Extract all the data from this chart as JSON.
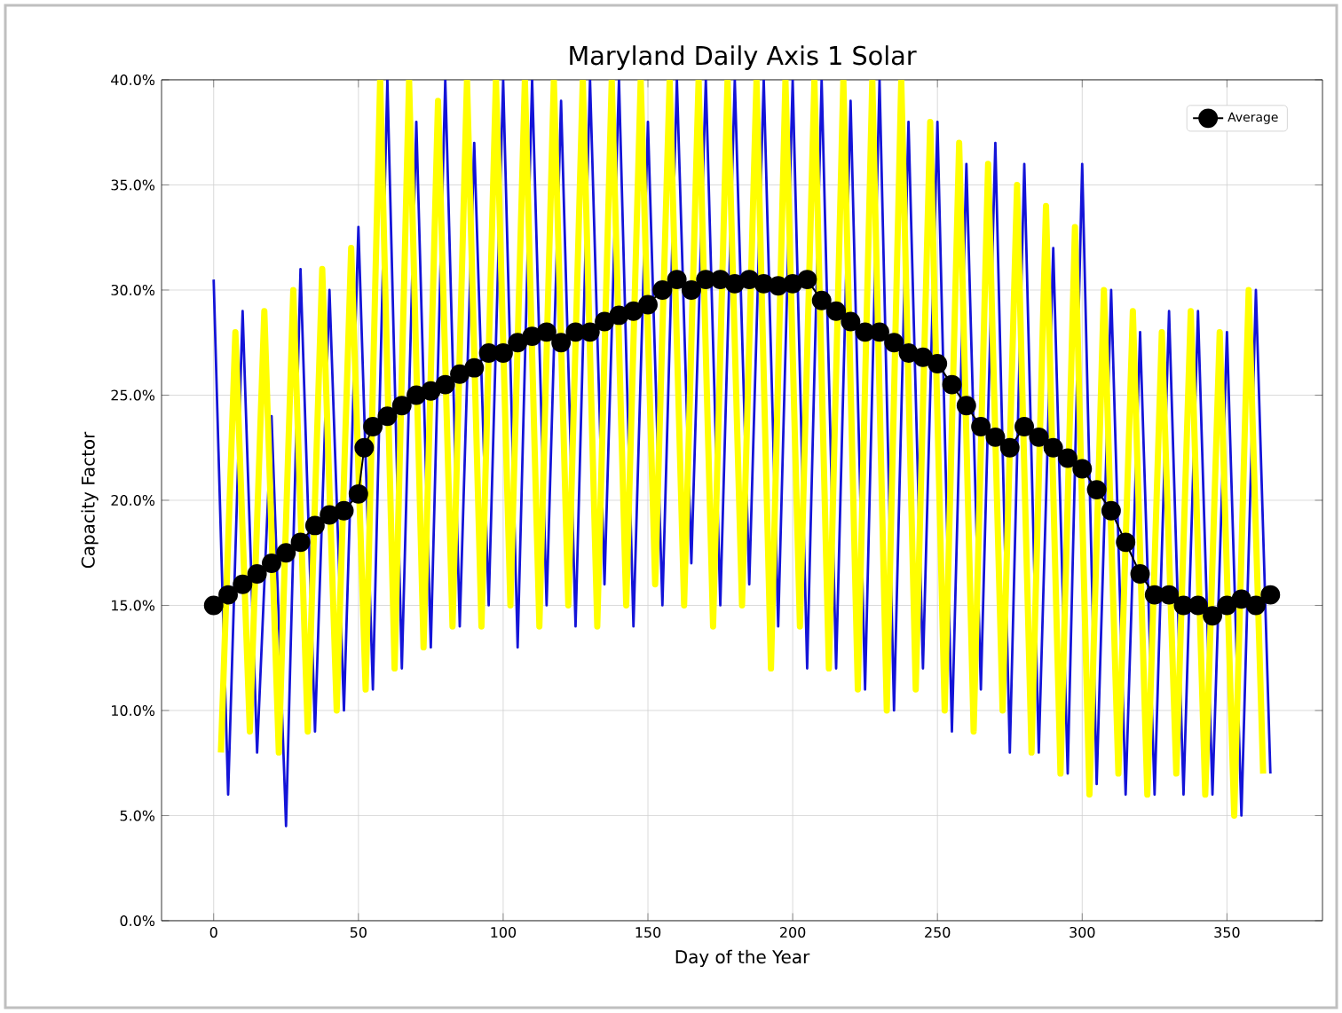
{
  "chart_data": {
    "type": "line",
    "title": "Maryland Daily Axis 1 Solar",
    "xlabel": "Day of the Year",
    "ylabel": "Capacity Factor",
    "xlim": [
      -18,
      383
    ],
    "ylim": [
      0,
      40
    ],
    "xticks": [
      0,
      50,
      100,
      150,
      200,
      250,
      300,
      350
    ],
    "yticks": [
      {
        "value": 0,
        "label": "0.0%"
      },
      {
        "value": 5,
        "label": "5.0%"
      },
      {
        "value": 10,
        "label": "10.0%"
      },
      {
        "value": 15,
        "label": "15.0%"
      },
      {
        "value": 20,
        "label": "20.0%"
      },
      {
        "value": 25,
        "label": "25.0%"
      },
      {
        "value": 30,
        "label": "30.0%"
      },
      {
        "value": 35,
        "label": "35.0%"
      },
      {
        "value": 40,
        "label": "40.0%"
      }
    ],
    "grid": true,
    "legend": "top right",
    "series": [
      {
        "color": "#1414d8",
        "x": [
          0,
          5,
          10,
          15,
          20,
          25,
          30,
          35,
          40,
          45,
          50,
          55,
          60,
          65,
          70,
          75,
          80,
          85,
          90,
          95,
          100,
          105,
          110,
          115,
          120,
          125,
          130,
          135,
          140,
          145,
          150,
          155,
          160,
          165,
          170,
          175,
          180,
          185,
          190,
          195,
          200,
          205,
          210,
          215,
          220,
          225,
          230,
          235,
          240,
          245,
          250,
          255,
          260,
          265,
          270,
          275,
          280,
          285,
          290,
          295,
          300,
          305,
          310,
          315,
          320,
          325,
          330,
          335,
          340,
          345,
          350,
          355,
          360,
          365
        ],
        "values": [
          30.5,
          6,
          29,
          8,
          24,
          4.5,
          31,
          9,
          30,
          10,
          33,
          11,
          40,
          12,
          38,
          13,
          40,
          14,
          37,
          15,
          40,
          13,
          40,
          15,
          39,
          14,
          40,
          16,
          40,
          14,
          38,
          15,
          40,
          17,
          40,
          15,
          40,
          16,
          40,
          14,
          40,
          12,
          40,
          12,
          39,
          11,
          40,
          10,
          38,
          12,
          38,
          9,
          36,
          11,
          37,
          8,
          36,
          8,
          32,
          7,
          36,
          6.5,
          30,
          6,
          28,
          6,
          29,
          6,
          29,
          6,
          28,
          5,
          30,
          7
        ]
      },
      {
        "color": "#ffff00",
        "x": [
          2.5,
          7.5,
          12.5,
          17.5,
          22.5,
          27.5,
          32.5,
          37.5,
          42.5,
          47.5,
          52.5,
          57.5,
          62.5,
          67.5,
          72.5,
          77.5,
          82.5,
          87.5,
          92.5,
          97.5,
          102.5,
          107.5,
          112.5,
          117.5,
          122.5,
          127.5,
          132.5,
          137.5,
          142.5,
          147.5,
          152.5,
          157.5,
          162.5,
          167.5,
          172.5,
          177.5,
          182.5,
          187.5,
          192.5,
          197.5,
          202.5,
          207.5,
          212.5,
          217.5,
          222.5,
          227.5,
          232.5,
          237.5,
          242.5,
          247.5,
          252.5,
          257.5,
          262.5,
          267.5,
          272.5,
          277.5,
          282.5,
          287.5,
          292.5,
          297.5,
          302.5,
          307.5,
          312.5,
          317.5,
          322.5,
          327.5,
          332.5,
          337.5,
          342.5,
          347.5,
          352.5,
          357.5,
          362.5
        ],
        "values": [
          8,
          28,
          9,
          29,
          8,
          30,
          9,
          31,
          10,
          32,
          11,
          40,
          12,
          40,
          13,
          39,
          14,
          40,
          14,
          40,
          15,
          40,
          14,
          40,
          15,
          40,
          14,
          40,
          15,
          40,
          16,
          40,
          15,
          40,
          14,
          40,
          15,
          40,
          12,
          40,
          14,
          40,
          12,
          40,
          11,
          40,
          10,
          40,
          11,
          38,
          10,
          37,
          9,
          36,
          10,
          35,
          8,
          34,
          7,
          33,
          6,
          30,
          7,
          29,
          6,
          28,
          7,
          29,
          6,
          28,
          5,
          30,
          7
        ]
      },
      {
        "name": "Average",
        "color": "#000000",
        "marker": "circle",
        "x": [
          0,
          5,
          10,
          15,
          20,
          25,
          30,
          35,
          40,
          45,
          50,
          52,
          55,
          60,
          65,
          70,
          75,
          80,
          85,
          90,
          95,
          100,
          105,
          110,
          115,
          120,
          125,
          130,
          135,
          140,
          145,
          150,
          155,
          160,
          165,
          170,
          175,
          180,
          185,
          190,
          195,
          200,
          205,
          210,
          215,
          220,
          225,
          230,
          235,
          240,
          245,
          250,
          255,
          260,
          265,
          270,
          275,
          280,
          285,
          290,
          295,
          300,
          305,
          310,
          315,
          320,
          325,
          330,
          335,
          340,
          345,
          350,
          355,
          360,
          365
        ],
        "values": [
          15.0,
          15.5,
          16.0,
          16.5,
          17.0,
          17.5,
          18.0,
          18.8,
          19.3,
          19.5,
          20.3,
          22.5,
          23.5,
          24.0,
          24.5,
          25.0,
          25.2,
          25.5,
          26.0,
          26.3,
          27.0,
          27.0,
          27.5,
          27.8,
          28.0,
          27.5,
          28.0,
          28.0,
          28.5,
          28.8,
          29.0,
          29.3,
          30.0,
          30.5,
          30.0,
          30.5,
          30.5,
          30.3,
          30.5,
          30.3,
          30.2,
          30.3,
          30.5,
          29.5,
          29.0,
          28.5,
          28.0,
          28.0,
          27.5,
          27.0,
          26.8,
          26.5,
          25.5,
          24.5,
          23.5,
          23.0,
          22.5,
          23.5,
          23.0,
          22.5,
          22.0,
          21.5,
          20.5,
          19.5,
          18.0,
          16.5,
          15.5,
          15.5,
          15.0,
          15.0,
          14.5,
          15.0,
          15.3,
          15.0,
          15.5
        ]
      }
    ]
  }
}
